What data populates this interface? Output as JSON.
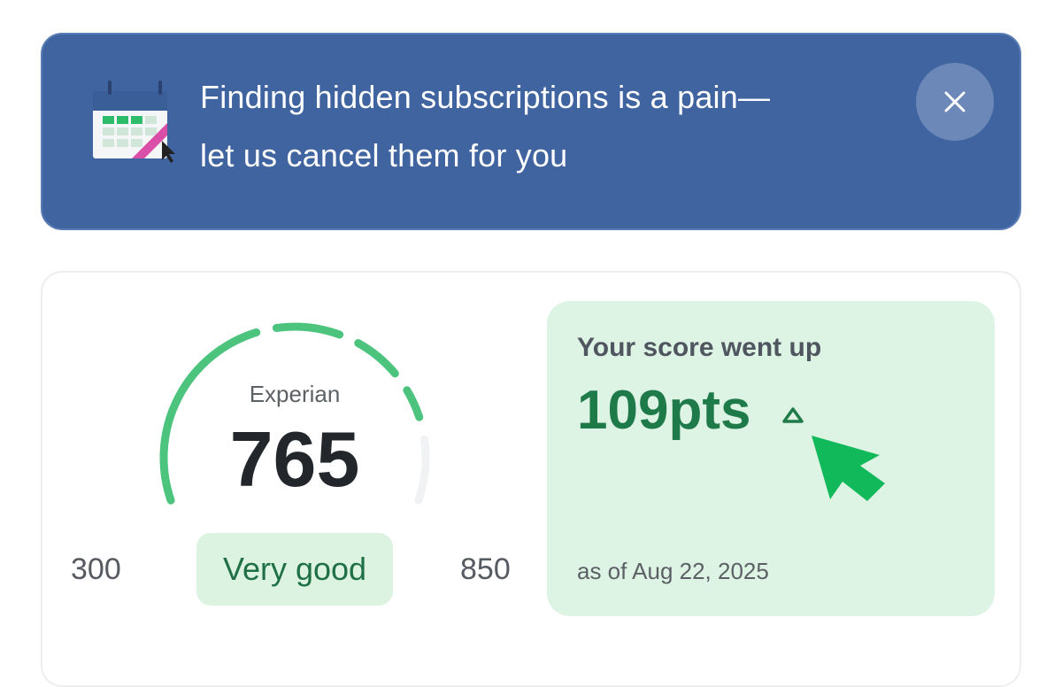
{
  "banner": {
    "line1": "Finding hidden subscriptions is a pain—",
    "line2": "let us cancel them for you",
    "icon_label": "Cancel",
    "background": "#3f649f"
  },
  "score_card": {
    "bureau": "Experian",
    "score": "765",
    "min": "300",
    "max": "850",
    "rating": "Very good",
    "change_title": "Your score went up",
    "change_value": "109pts",
    "as_of": "as of Aug 22, 2025",
    "accent": "#4cc47e"
  }
}
